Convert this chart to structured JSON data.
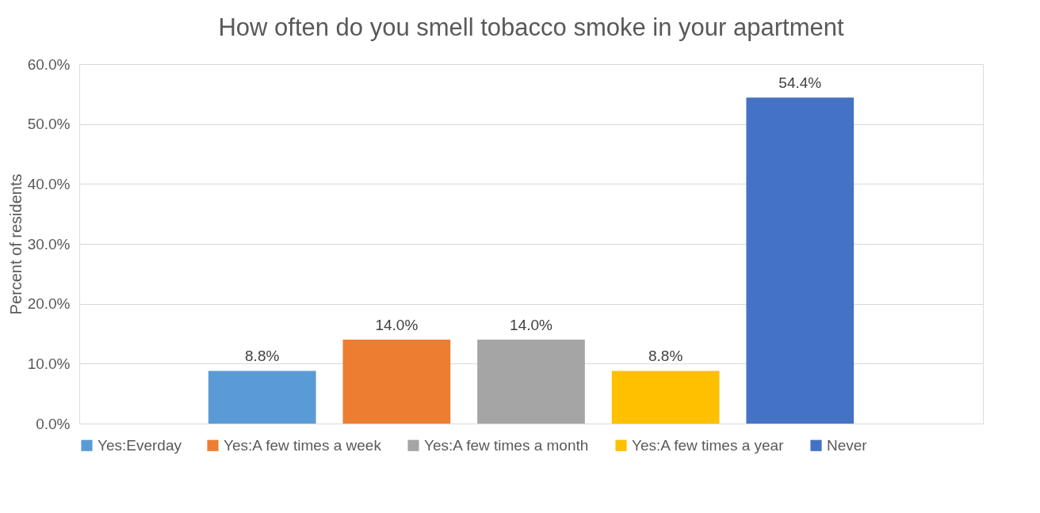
{
  "chart_data": {
    "type": "bar",
    "title": "How often do you smell tobacco smoke in your apartment",
    "ylabel": "Percent of residents",
    "categories": [
      null
    ],
    "series": [
      {
        "name": "Yes:Everday",
        "color": "#5b9bd5",
        "values": [
          8.8
        ],
        "value_labels": [
          "8.8%"
        ]
      },
      {
        "name": "Yes:A few times a week",
        "color": "#ed7d31",
        "values": [
          14.0
        ],
        "value_labels": [
          "14.0%"
        ]
      },
      {
        "name": "Yes:A few times a month",
        "color": "#a5a5a5",
        "values": [
          14.0
        ],
        "value_labels": [
          "14.0%"
        ]
      },
      {
        "name": "Yes:A few times a year",
        "color": "#ffc000",
        "values": [
          8.8
        ],
        "value_labels": [
          "8.8%"
        ]
      },
      {
        "name": "Never",
        "color": "#4472c4",
        "values": [
          54.4
        ],
        "value_labels": [
          "54.4%"
        ]
      }
    ],
    "ylim": [
      0,
      60
    ],
    "yticks": [
      {
        "value": 0,
        "label": "0.0%"
      },
      {
        "value": 10,
        "label": "10.0%"
      },
      {
        "value": 20,
        "label": "20.0%"
      },
      {
        "value": 30,
        "label": "30.0%"
      },
      {
        "value": 40,
        "label": "40.0%"
      },
      {
        "value": 50,
        "label": "50.0%"
      },
      {
        "value": 60,
        "label": "60.0%"
      }
    ],
    "grid": "y",
    "legend": "bottom",
    "tick_labels": "y"
  }
}
